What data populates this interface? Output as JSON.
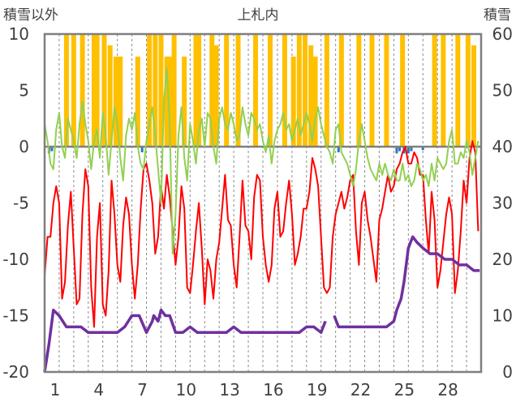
{
  "chart_data": {
    "type": "line",
    "title": "上札内",
    "left_axis_label": "積雪以外",
    "right_axis_label": "積雪",
    "y_left": {
      "min": -20,
      "max": 10,
      "ticks": [
        10,
        5,
        0,
        -5,
        -10,
        -15,
        -20
      ]
    },
    "y_right": {
      "min": 0,
      "max": 60,
      "ticks": [
        60,
        50,
        40,
        30,
        20,
        10,
        0
      ]
    },
    "x": {
      "min": 0,
      "max": 30,
      "tick_labels": [
        "1",
        "4",
        "7",
        "10",
        "13",
        "16",
        "19",
        "22",
        "25",
        "28"
      ],
      "tick_positions": [
        1,
        4,
        7,
        10,
        13,
        16,
        19,
        22,
        25,
        28
      ]
    },
    "grid": "vertical dashed (daily)",
    "colors": {
      "precip": "#ffc000",
      "snowfall_neg": "#2e75b6",
      "temp": "#ff0000",
      "wind": "#92d050",
      "snow_depth": "#7030a0",
      "zero_line": "#7f7f7f",
      "frame": "#7f7f7f"
    },
    "series": [
      {
        "key": "precip",
        "type": "bar",
        "axis": "left",
        "x": [
          1.5,
          2.0,
          2.6,
          3.4,
          3.6,
          4.1,
          4.5,
          4.9,
          5.2,
          6.4,
          7.2,
          7.6,
          8.0,
          8.4,
          8.6,
          8.9,
          9.6,
          10.4,
          10.6,
          11.5,
          11.8,
          12.5,
          13.3,
          14.5,
          15.5,
          16.5,
          17.1,
          17.5,
          17.9,
          18.3,
          18.6,
          19.4,
          20.4,
          21.6,
          22.5,
          23.5,
          24.6,
          26.8,
          27.4,
          28.4,
          29.1,
          29.5
        ],
        "values": [
          10,
          10,
          10,
          10,
          10,
          10,
          9,
          8,
          8,
          8,
          10,
          10,
          10,
          8,
          8,
          10,
          8,
          10,
          10,
          10,
          9,
          10,
          10,
          10,
          10,
          10,
          8,
          10,
          10,
          9,
          8,
          10,
          10,
          10,
          10,
          10,
          10,
          10,
          10,
          10,
          10,
          9
        ]
      },
      {
        "key": "snowfall_neg",
        "type": "bar",
        "axis": "left",
        "x": [
          0.3,
          0.5,
          6.7,
          20.2,
          24.2,
          24.4,
          24.7,
          25.0,
          25.2,
          26.0
        ],
        "values": [
          -0.6,
          -0.4,
          -0.5,
          -0.5,
          -0.6,
          -0.4,
          -0.6,
          -0.6,
          -0.4,
          -0.3
        ]
      },
      {
        "key": "temp",
        "type": "line",
        "axis": "left",
        "x": [
          0.0,
          0.2,
          0.4,
          0.6,
          0.8,
          1.0,
          1.2,
          1.4,
          1.6,
          1.8,
          2.0,
          2.2,
          2.4,
          2.6,
          2.8,
          3.0,
          3.2,
          3.4,
          3.6,
          3.8,
          4.0,
          4.2,
          4.4,
          4.6,
          4.8,
          5.0,
          5.2,
          5.4,
          5.6,
          5.8,
          6.0,
          6.2,
          6.4,
          6.6,
          6.8,
          7.0,
          7.2,
          7.4,
          7.6,
          7.8,
          8.0,
          8.2,
          8.4,
          8.6,
          8.8,
          9.0,
          9.2,
          9.4,
          9.6,
          9.8,
          10.0,
          10.2,
          10.4,
          10.6,
          10.8,
          11.0,
          11.2,
          11.4,
          11.6,
          11.8,
          12.0,
          12.2,
          12.4,
          12.6,
          12.8,
          13.0,
          13.2,
          13.4,
          13.6,
          13.8,
          14.0,
          14.2,
          14.4,
          14.6,
          14.8,
          15.0,
          15.2,
          15.4,
          15.6,
          15.8,
          16.0,
          16.2,
          16.4,
          16.6,
          16.8,
          17.0,
          17.2,
          17.4,
          17.6,
          17.8,
          18.0,
          18.2,
          18.4,
          18.6,
          18.8,
          19.0,
          19.2,
          19.4,
          19.6,
          19.8,
          20.0,
          20.2,
          20.4,
          20.6,
          20.8,
          21.0,
          21.2,
          21.4,
          21.6,
          21.8,
          22.0,
          22.2,
          22.4,
          22.6,
          22.8,
          23.0,
          23.2,
          23.4,
          23.6,
          23.8,
          24.0,
          24.2,
          24.4,
          24.6,
          24.8,
          25.0,
          25.2,
          25.4,
          25.6,
          25.8,
          26.0,
          26.2,
          26.4,
          26.6,
          26.8,
          27.0,
          27.2,
          27.4,
          27.6,
          27.8,
          28.0,
          28.2,
          28.4,
          28.6,
          28.8,
          29.0,
          29.2,
          29.4,
          29.6,
          29.8
        ],
        "values": [
          -11.5,
          -8.0,
          -8.0,
          -5.0,
          -3.5,
          -5.0,
          -13.5,
          -12.0,
          -7.0,
          -4.0,
          -9.0,
          -14.0,
          -13.5,
          -6.0,
          -2.0,
          -3.5,
          -12.5,
          -16.0,
          -8.0,
          -5.0,
          -14.0,
          -15.0,
          -11.0,
          -3.0,
          -6.0,
          -10.5,
          -12.0,
          -7.0,
          -4.5,
          -6.0,
          -10.5,
          -13.5,
          -10.5,
          -5.5,
          -2.0,
          -1.5,
          -3.0,
          -5.0,
          -9.5,
          -8.0,
          -3.5,
          -5.5,
          -2.5,
          -4.5,
          -7.5,
          -10.5,
          -8.0,
          -3.5,
          -5.5,
          -12.5,
          -13.0,
          -10.5,
          -7.5,
          -5.0,
          -9.0,
          -14.0,
          -10.0,
          -11.0,
          -13.5,
          -10.0,
          -8.5,
          -5.5,
          -2.5,
          -6.5,
          -7.0,
          -10.5,
          -12.5,
          -8.0,
          -3.0,
          -7.0,
          -7.5,
          -10.0,
          -4.5,
          -2.5,
          -3.0,
          -8.0,
          -10.5,
          -12.0,
          -10.5,
          -5.5,
          -4.0,
          -8.0,
          -7.5,
          -5.0,
          -3.0,
          -6.0,
          -10.5,
          -9.5,
          -8.0,
          -5.5,
          -5.5,
          -4.0,
          -1.0,
          -2.0,
          -3.5,
          -8.0,
          -12.5,
          -13.0,
          -12.5,
          -8.0,
          -6.0,
          -5.0,
          -4.0,
          -5.5,
          -4.5,
          -3.0,
          -2.5,
          -7.5,
          -10.5,
          -5.0,
          -4.0,
          -6.5,
          -8.0,
          -10.0,
          -12.0,
          -6.5,
          -5.5,
          -4.0,
          -2.5,
          -4.0,
          -3.5,
          -2.0,
          -1.5,
          -0.5,
          0.0,
          -1.5,
          -1.5,
          -0.5,
          -1.0,
          -2.5,
          -2.5,
          -6.5,
          -9.5,
          -4.0,
          -6.5,
          -12.5,
          -11.0,
          -8.5,
          -6.0,
          -4.5,
          -6.0,
          -13.0,
          -11.0,
          -7.5,
          -3.0,
          -5.0,
          -1.0,
          0.5,
          -0.5,
          -7.5
        ]
      },
      {
        "key": "wind",
        "type": "line",
        "axis": "left",
        "x": [
          0.0,
          0.2,
          0.4,
          0.6,
          0.8,
          1.0,
          1.2,
          1.4,
          1.6,
          1.8,
          2.0,
          2.2,
          2.4,
          2.6,
          2.8,
          3.0,
          3.2,
          3.4,
          3.6,
          3.8,
          4.0,
          4.2,
          4.4,
          4.6,
          4.8,
          5.0,
          5.2,
          5.4,
          5.6,
          5.8,
          6.0,
          6.2,
          6.4,
          6.6,
          6.8,
          7.0,
          7.2,
          7.4,
          7.6,
          7.8,
          8.0,
          8.2,
          8.4,
          8.6,
          8.8,
          9.0,
          9.2,
          9.4,
          9.6,
          9.8,
          10.0,
          10.2,
          10.4,
          10.6,
          10.8,
          11.0,
          11.2,
          11.4,
          11.6,
          11.8,
          12.0,
          12.2,
          12.4,
          12.6,
          12.8,
          13.0,
          13.2,
          13.4,
          13.6,
          13.8,
          14.0,
          14.2,
          14.4,
          14.6,
          14.8,
          15.0,
          15.2,
          15.4,
          15.6,
          15.8,
          16.0,
          16.2,
          16.4,
          16.6,
          16.8,
          17.0,
          17.2,
          17.4,
          17.6,
          17.8,
          18.0,
          18.2,
          18.4,
          18.6,
          18.8,
          19.0,
          19.2,
          19.4,
          19.6,
          19.8,
          20.0,
          20.2,
          20.4,
          20.6,
          20.8,
          21.0,
          21.2,
          21.4,
          21.6,
          21.8,
          22.0,
          22.2,
          22.4,
          22.6,
          22.8,
          23.0,
          23.2,
          23.4,
          23.6,
          23.8,
          24.0,
          24.2,
          24.4,
          24.6,
          24.8,
          25.0,
          25.2,
          25.4,
          25.6,
          25.8,
          26.0,
          26.2,
          26.4,
          26.6,
          26.8,
          27.0,
          27.2,
          27.4,
          27.6,
          27.8,
          28.0,
          28.2,
          28.4,
          28.6,
          28.8,
          29.0,
          29.2,
          29.4,
          29.6,
          29.8
        ],
        "values": [
          2.0,
          0.5,
          -1.5,
          -2.0,
          1.5,
          3.0,
          0.0,
          -1.0,
          2.5,
          1.5,
          0.5,
          -1.0,
          2.0,
          4.0,
          2.0,
          0.5,
          -2.0,
          0.5,
          1.5,
          -1.0,
          3.0,
          1.0,
          -2.5,
          0.5,
          3.5,
          2.0,
          -1.0,
          -3.0,
          1.0,
          2.5,
          1.5,
          3.0,
          0.0,
          -1.5,
          -2.0,
          0.5,
          2.0,
          3.5,
          1.0,
          -2.0,
          -5.0,
          4.0,
          7.0,
          2.0,
          -9.5,
          -6.0,
          1.0,
          3.5,
          -1.0,
          -3.0,
          2.0,
          0.5,
          -1.5,
          1.5,
          2.5,
          0.0,
          3.0,
          2.5,
          0.0,
          -1.5,
          2.5,
          3.5,
          2.0,
          1.5,
          3.0,
          2.0,
          0.5,
          1.0,
          3.5,
          2.0,
          1.0,
          3.0,
          2.5,
          1.5,
          2.0,
          0.5,
          -0.5,
          1.0,
          -1.5,
          0.5,
          1.5,
          2.0,
          3.0,
          1.5,
          2.0,
          0.5,
          1.5,
          2.5,
          1.0,
          2.0,
          3.0,
          2.0,
          0.5,
          2.5,
          3.5,
          2.0,
          1.0,
          0.0,
          -0.5,
          -1.5,
          1.5,
          2.0,
          -0.5,
          -1.0,
          -1.5,
          -2.5,
          -3.5,
          -2.0,
          0.5,
          2.0,
          0.5,
          -1.0,
          -2.0,
          -2.5,
          -3.0,
          -1.5,
          -2.5,
          -1.5,
          -2.5,
          -3.0,
          -2.0,
          -3.0,
          -3.0,
          -1.5,
          -3.0,
          -2.5,
          -3.5,
          -3.0,
          -1.5,
          -2.0,
          -3.0,
          -2.5,
          -3.5,
          -1.5,
          -3.0,
          -1.0,
          -1.5,
          -2.0,
          -1.5,
          0.5,
          1.5,
          -1.5,
          -1.5,
          -0.5,
          -1.0,
          0.5,
          -0.5,
          -2.5,
          -1.0,
          0.5
        ]
      },
      {
        "key": "snow_depth",
        "type": "line",
        "axis": "right",
        "x": [
          0.0,
          0.3,
          0.6,
          1.0,
          1.5,
          2.0,
          2.5,
          3.0,
          3.5,
          4.0,
          4.5,
          5.0,
          5.5,
          6.0,
          6.2,
          6.5,
          7.0,
          7.4,
          7.5,
          7.8,
          8.0,
          8.3,
          8.6,
          9.0,
          9.5,
          10.0,
          10.5,
          11.0,
          11.5,
          12.0,
          12.5,
          13.0,
          13.5,
          14.0,
          14.5,
          15.0,
          15.5,
          16.0,
          16.5,
          17.0,
          17.5,
          18.0,
          18.5,
          19.0,
          19.3,
          null,
          19.9,
          20.2,
          20.5,
          21.0,
          21.5,
          22.0,
          22.5,
          23.0,
          23.5,
          24.0,
          24.2,
          24.5,
          24.7,
          25.0,
          25.3,
          25.6,
          26.0,
          26.5,
          27.0,
          27.5,
          28.0,
          28.5,
          29.0,
          29.5,
          29.9
        ],
        "values": [
          0,
          5,
          11,
          10,
          8,
          8,
          8,
          7,
          7,
          7,
          7,
          7,
          8,
          10,
          10,
          10,
          7,
          9,
          10,
          9,
          11,
          10,
          10,
          7,
          7,
          8,
          7,
          7,
          7,
          7,
          7,
          8,
          7,
          7,
          7,
          7,
          7,
          7,
          7,
          7,
          7,
          8,
          8,
          7,
          9,
          null,
          10,
          8,
          8,
          8,
          8,
          8,
          8,
          8,
          8,
          9,
          11,
          13,
          16,
          22,
          24,
          23,
          22,
          21,
          21,
          20,
          20,
          19,
          19,
          18,
          18
        ]
      }
    ]
  }
}
